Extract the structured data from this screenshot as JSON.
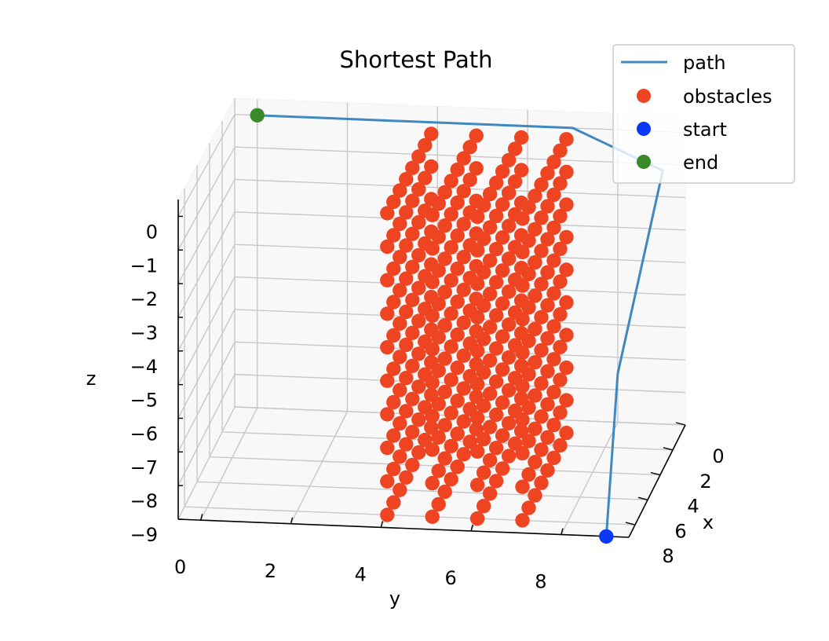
{
  "chart_data": {
    "type": "scatter",
    "title": "Shortest Path",
    "xlabel": "x",
    "ylabel": "y",
    "zlabel": "z",
    "xticks": [
      "0",
      "2",
      "4",
      "6",
      "8"
    ],
    "yticks": [
      "0",
      "2",
      "4",
      "6",
      "8"
    ],
    "zticks": [
      "0",
      "−1",
      "−2",
      "−3",
      "−4",
      "−5",
      "−6",
      "−7",
      "−8",
      "−9"
    ],
    "xlim": [
      0,
      9
    ],
    "ylim": [
      -0.5,
      9.5
    ],
    "zlim": [
      -9,
      0.5
    ],
    "grid": true,
    "legend_position": "top-right",
    "series": [
      {
        "name": "path",
        "kind": "line",
        "color": "#3f88c0",
        "points": [
          [
            9,
            9,
            -9
          ],
          [
            0,
            8,
            -7.5
          ],
          [
            0,
            9,
            -1.2
          ],
          [
            0,
            7,
            0
          ],
          [
            0,
            0,
            0
          ]
        ]
      },
      {
        "name": "obstacles",
        "kind": "scatter",
        "color": "#ee4422",
        "wall_y": [
          4,
          5,
          6,
          7
        ],
        "x_values": [
          1,
          2,
          3,
          4,
          5,
          6,
          7,
          8
        ],
        "z_values": [
          -9,
          -8,
          -7,
          -6,
          -5,
          -4,
          -3,
          -2,
          -1,
          0
        ]
      },
      {
        "name": "start",
        "kind": "scatter",
        "color": "#0a39f5",
        "points": [
          [
            9,
            9,
            -9
          ]
        ]
      },
      {
        "name": "end",
        "kind": "scatter",
        "color": "#3a8a2a",
        "points": [
          [
            0,
            0,
            0
          ]
        ]
      }
    ]
  }
}
